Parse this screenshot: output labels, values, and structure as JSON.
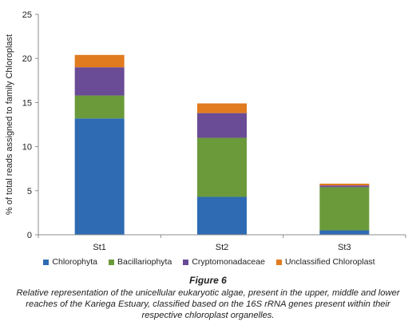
{
  "chart_data": {
    "type": "bar",
    "stacked": true,
    "categories": [
      "St1",
      "St2",
      "St3"
    ],
    "series": [
      {
        "name": "Chlorophyta",
        "color": "#2e6bb3",
        "values": [
          13.2,
          4.3,
          0.5
        ]
      },
      {
        "name": "Bacillariophyta",
        "color": "#6b9a3a",
        "values": [
          2.6,
          6.7,
          4.9
        ]
      },
      {
        "name": "Cryptomonadaceae",
        "color": "#6a4b95",
        "values": [
          3.2,
          2.8,
          0.2
        ]
      },
      {
        "name": "Unclassified Chloroplast",
        "color": "#e07b1f",
        "values": [
          1.4,
          1.1,
          0.2
        ]
      }
    ],
    "ylabel": "% of total reads assigned to family Chloroplast",
    "xlabel": "",
    "ylim": [
      0,
      25
    ],
    "yticks": [
      0,
      5,
      10,
      15,
      20,
      25
    ],
    "grid": false,
    "legend_position": "bottom"
  },
  "figure_title": "Figure 6",
  "caption": "Relative representation of the unicellular eukaryotic algae, present in the upper, middle and lower reaches of the Kariega Estuary, classified based on the 16S rRNA genes present within their respective chloroplast organelles."
}
